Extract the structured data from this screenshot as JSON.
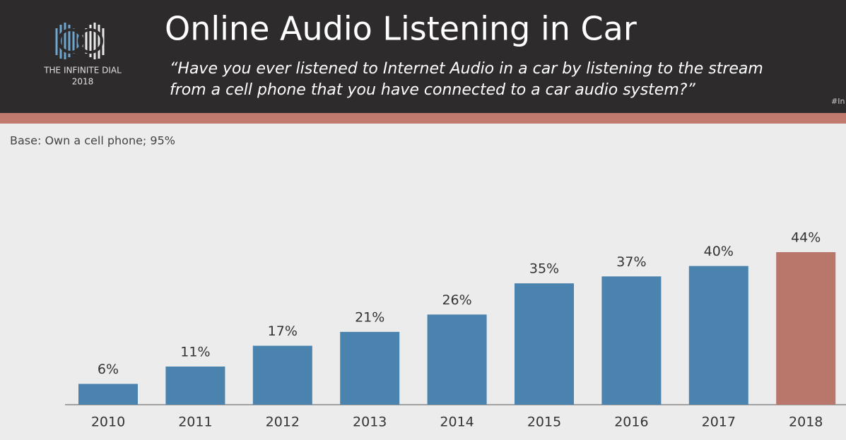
{
  "logo": {
    "line1": "THE INFINITE DIAL",
    "line2": "2018"
  },
  "hashtag": "#In",
  "chart_data": {
    "type": "bar",
    "title": "Online Audio Listening in Car",
    "subtitle_lines": [
      "“Have you ever listened to Internet Audio in a car by listening to the stream",
      "from a cell phone that you have connected to a car audio system?”"
    ],
    "note": "Base: Own a cell phone; 95%",
    "categories": [
      "2010",
      "2011",
      "2012",
      "2013",
      "2014",
      "2015",
      "2016",
      "2017",
      "2018"
    ],
    "values": [
      6,
      11,
      17,
      21,
      26,
      35,
      37,
      40,
      44
    ],
    "value_labels": [
      "6%",
      "11%",
      "17%",
      "21%",
      "26%",
      "35%",
      "37%",
      "40%",
      "44%"
    ],
    "colors": [
      "#4a83ad",
      "#4a83ad",
      "#4a83ad",
      "#4a83ad",
      "#4a83ad",
      "#4a83ad",
      "#4a83ad",
      "#4a83ad",
      "#b9766a"
    ]
  }
}
